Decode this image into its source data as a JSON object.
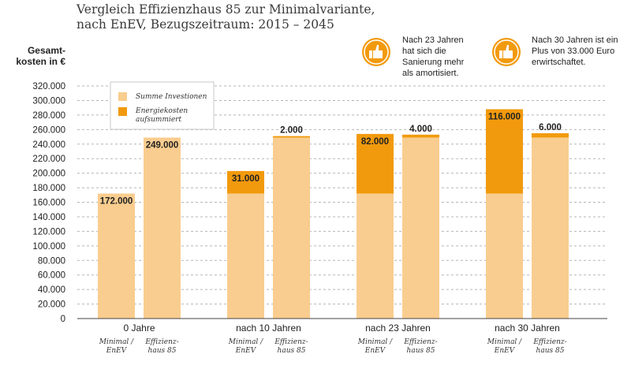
{
  "title_line1": "Vergleich Effizienzhaus 85 zur Minimalvariante,",
  "title_line2": "nach EnEV, Bezugszeitraum: 2015 – 2045",
  "ylabel_line1": "Gesamt-",
  "ylabel_line2": "kosten in €",
  "legend": {
    "investment": "Summe Investionen",
    "energy_line1": "Energiekosten",
    "energy_line2": "aufsummiert"
  },
  "notes": [
    {
      "lines": [
        "Nach 23 Jahren",
        "hat sich die",
        "Sanierung mehr",
        "als amortisiert."
      ],
      "icon": "thumbs-up-icon"
    },
    {
      "lines": [
        "Nach 30 Jahren ist ein",
        "Plus von 33.000 Euro",
        "erwirtschaftet."
      ],
      "icon": "thumbs-up-icon"
    }
  ],
  "colors": {
    "investment": "#f9cd8f",
    "energy": "#f29a0d",
    "icon": "#f29a0d"
  },
  "chart_data": {
    "type": "bar",
    "stacked": true,
    "ylim": [
      0,
      320000
    ],
    "ytick_step": 20000,
    "yticks": [
      "0",
      "20.000",
      "40.000",
      "60.000",
      "80.000",
      "100.000",
      "120.000",
      "140.000",
      "160.000",
      "180.000",
      "200.000",
      "220.000",
      "240.000",
      "260.000",
      "280.000",
      "300.000",
      "320.000"
    ],
    "grid": true,
    "legend_position": "top-left",
    "bar_labels": [
      [
        "Minimal /",
        "EnEV"
      ],
      [
        "Effizienz-",
        "haus 85"
      ]
    ],
    "groups": [
      {
        "label": "0 Jahre",
        "bars": [
          {
            "investment": 172000,
            "energy": 0,
            "label": "172.000"
          },
          {
            "investment": 249000,
            "energy": 0,
            "label": "249.000"
          }
        ]
      },
      {
        "label": "nach 10 Jahren",
        "bars": [
          {
            "investment": 172000,
            "energy": 31000,
            "label": "31.000"
          },
          {
            "investment": 249000,
            "energy": 2000,
            "label": "2.000"
          }
        ]
      },
      {
        "label": "nach 23 Jahren",
        "bars": [
          {
            "investment": 172000,
            "energy": 82000,
            "label": "82.000"
          },
          {
            "investment": 249000,
            "energy": 4000,
            "label": "4.000"
          }
        ]
      },
      {
        "label": "nach 30 Jahren",
        "bars": [
          {
            "investment": 172000,
            "energy": 116000,
            "label": "116.000"
          },
          {
            "investment": 249000,
            "energy": 6000,
            "label": "6.000"
          }
        ]
      }
    ]
  }
}
